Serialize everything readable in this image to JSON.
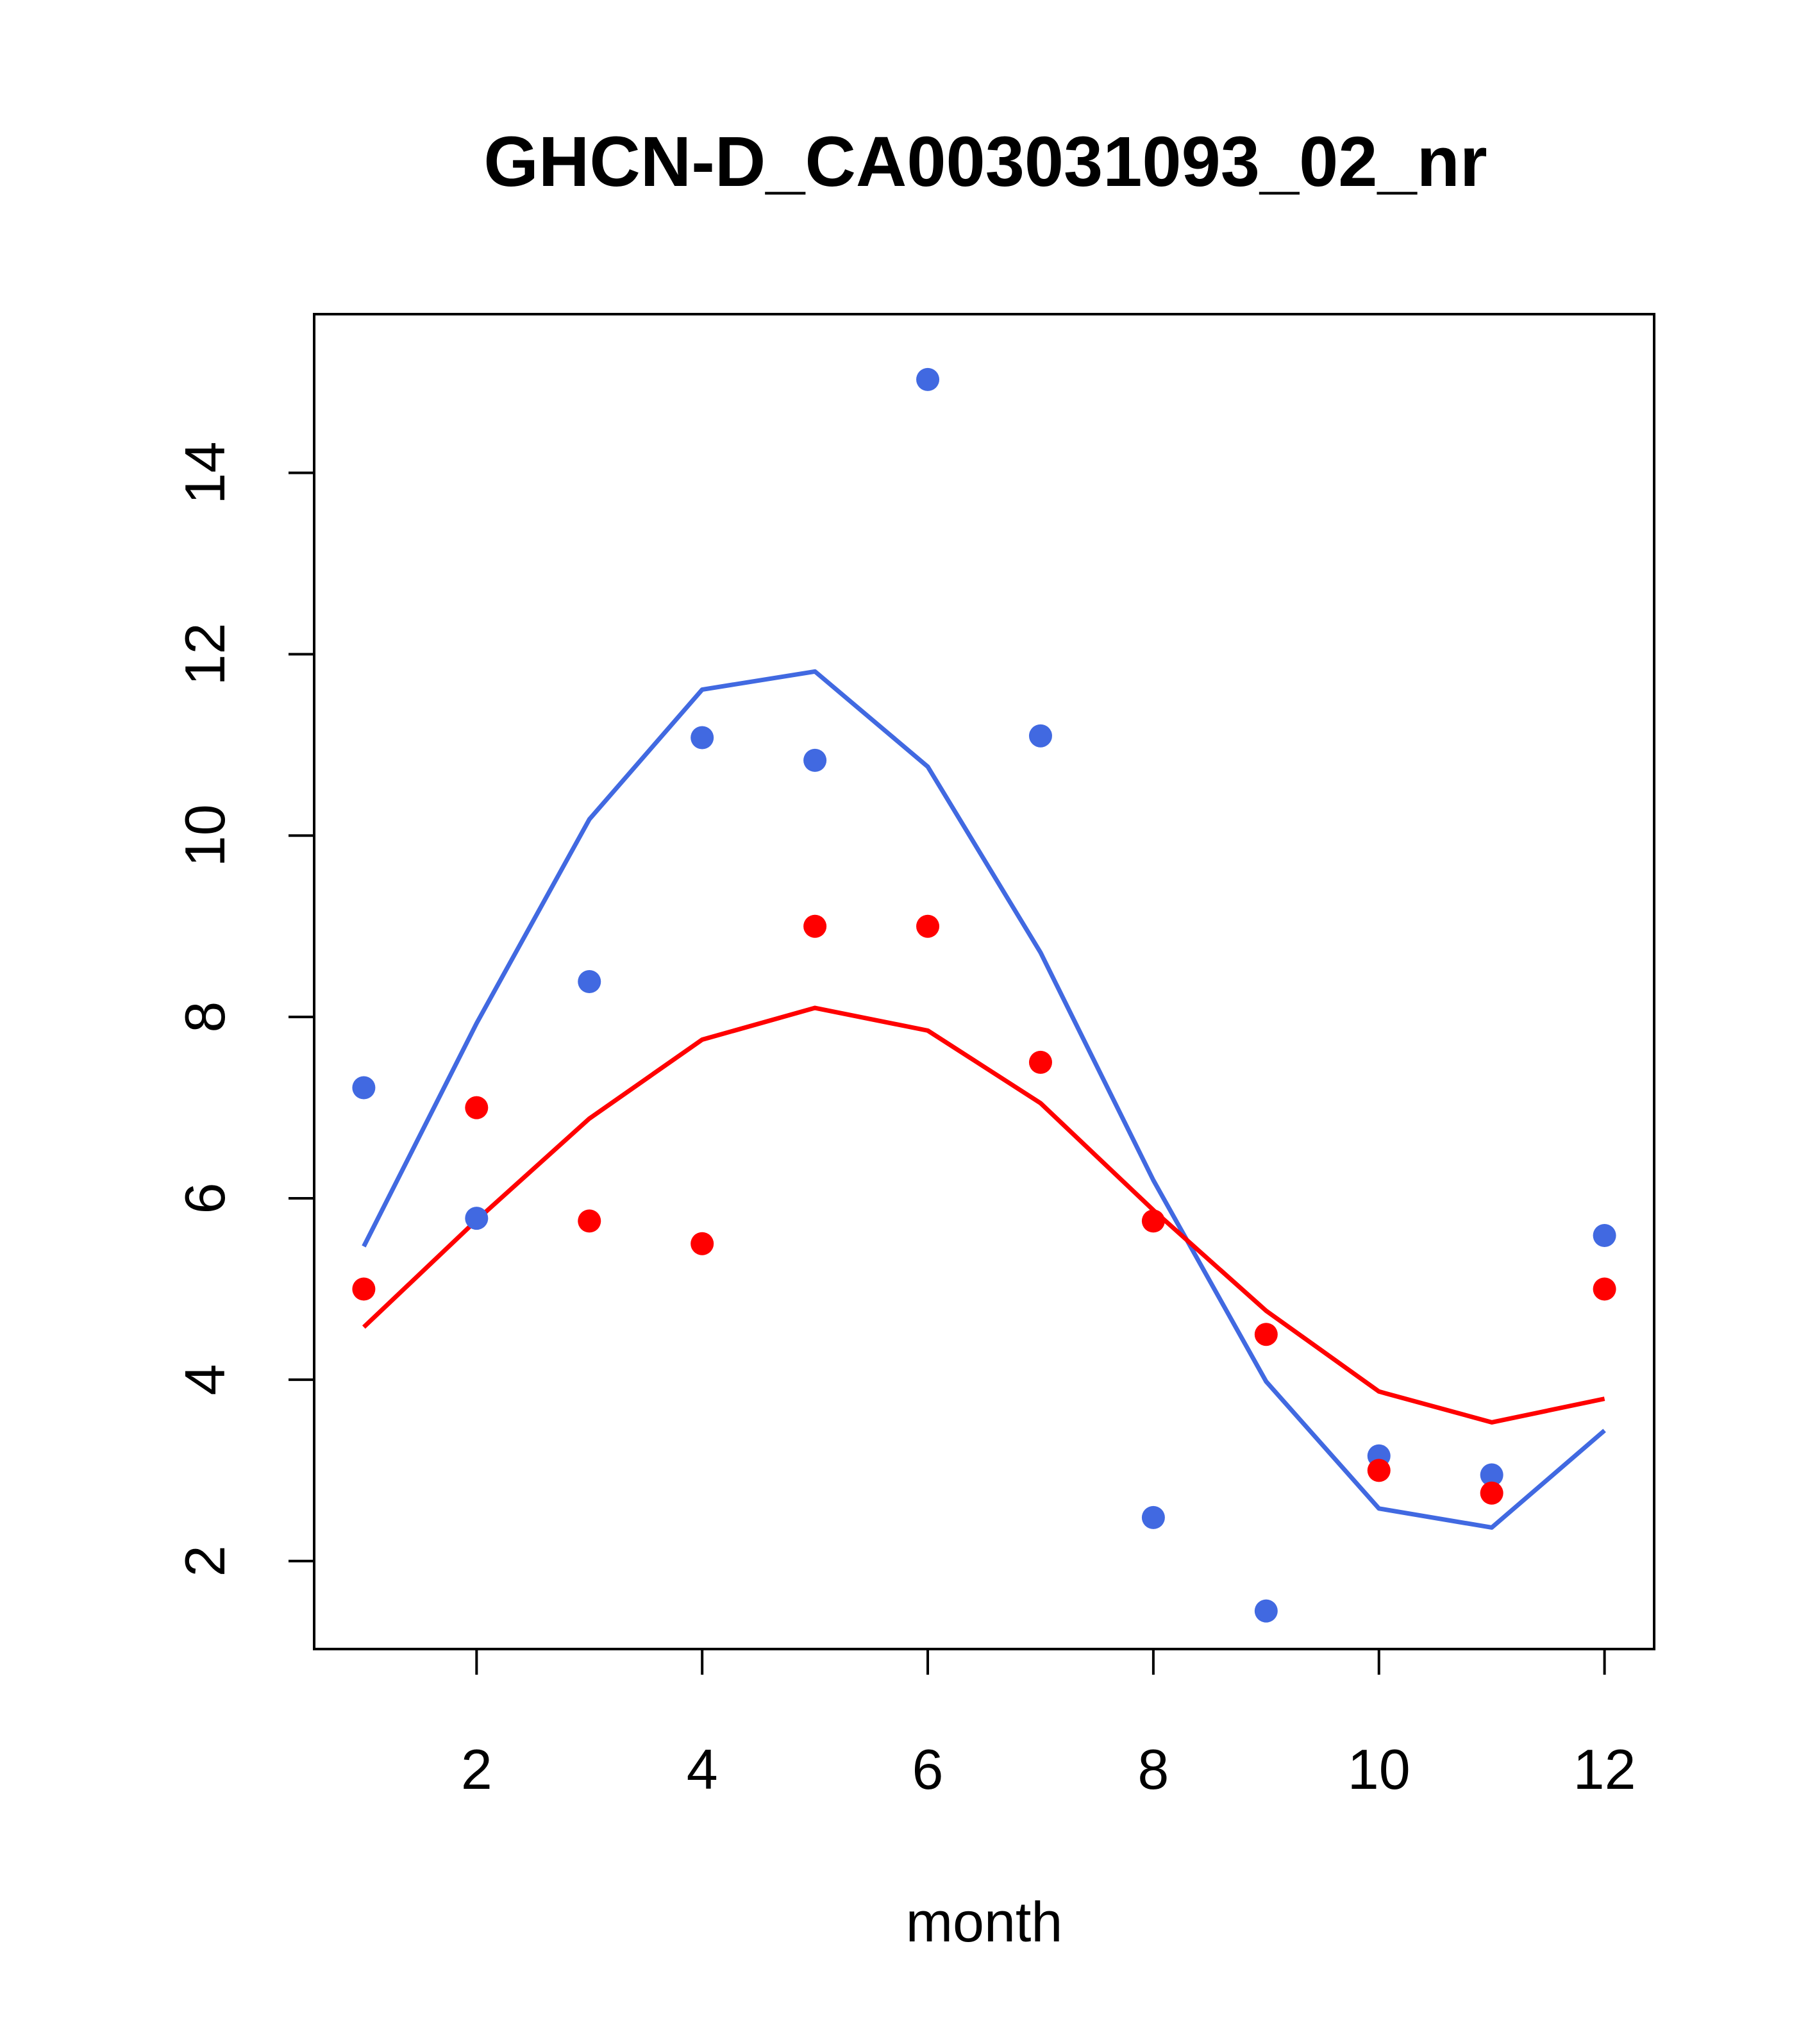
{
  "chart_data": {
    "type": "scatter",
    "title": "GHCN-D_CA003031093_02_nr",
    "xlabel": "month",
    "ylabel": "",
    "xlim": [
      0.56,
      12.44
    ],
    "ylim": [
      1.03,
      15.75
    ],
    "x_ticks": [
      2,
      4,
      6,
      8,
      10,
      12
    ],
    "y_ticks": [
      2,
      4,
      6,
      8,
      10,
      12,
      14
    ],
    "grid": false,
    "legend": "none",
    "x": [
      1,
      2,
      3,
      4,
      5,
      6,
      7,
      8,
      9,
      10,
      11,
      12
    ],
    "series": [
      {
        "name": "blue points",
        "kind": "points",
        "color": "#4169e1",
        "values": [
          7.22,
          5.78,
          8.39,
          11.08,
          10.83,
          15.03,
          11.1,
          2.48,
          1.45,
          3.16,
          2.95,
          5.59
        ]
      },
      {
        "name": "red points",
        "kind": "points",
        "color": "#ff0000",
        "values": [
          5.0,
          7.0,
          5.75,
          5.5,
          9.0,
          9.0,
          7.5,
          5.75,
          4.5,
          3.0,
          2.75,
          5.0
        ]
      },
      {
        "name": "blue line",
        "kind": "line",
        "color": "#4169e1",
        "values": [
          5.47,
          7.93,
          10.18,
          11.61,
          11.81,
          10.76,
          8.71,
          6.2,
          3.98,
          2.58,
          2.37,
          3.44
        ]
      },
      {
        "name": "red line",
        "kind": "line",
        "color": "#ff0000",
        "values": [
          4.58,
          5.76,
          6.88,
          7.75,
          8.1,
          7.85,
          7.05,
          5.87,
          4.76,
          3.87,
          3.53,
          3.79
        ]
      }
    ]
  }
}
